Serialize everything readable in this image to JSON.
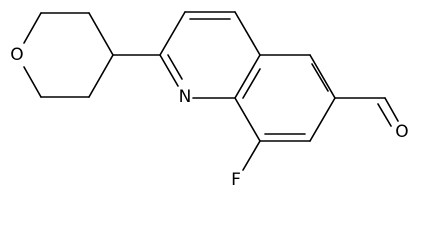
{
  "atoms": [
    {
      "label": "O"
    },
    {
      "label": "N"
    },
    {
      "label": "F"
    },
    {
      "label": "O"
    }
  ]
}
